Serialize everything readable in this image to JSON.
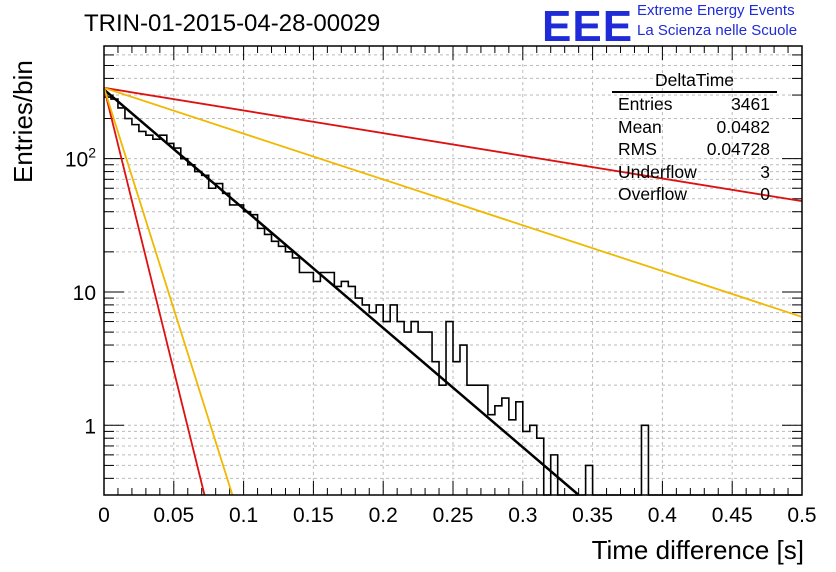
{
  "page_title": "TRIN-01-2015-04-28-00029",
  "logo": {
    "mark": "EEE",
    "line1": "Extreme Energy Events",
    "line2": "La Scienza nelle Scuole",
    "color": "#1f2bd6"
  },
  "stats": {
    "title": "DeltaTime",
    "rows": [
      {
        "label": "Entries",
        "value": "3461"
      },
      {
        "label": "Mean",
        "value": "0.0482"
      },
      {
        "label": "RMS",
        "value": "0.04728"
      },
      {
        "label": "Underflow",
        "value": "3"
      },
      {
        "label": "Overflow",
        "value": "0"
      }
    ]
  },
  "chart_data": {
    "type": "line",
    "xlabel": "Time difference [s]",
    "ylabel": "Entries/bin",
    "xlim": [
      0,
      0.5
    ],
    "yscale": "log",
    "ylim": [
      0.3,
      700
    ],
    "grid": true,
    "x_ticks": [
      "0",
      "0.05",
      "0.1",
      "0.15",
      "0.2",
      "0.25",
      "0.3",
      "0.35",
      "0.4",
      "0.45",
      "0.5"
    ],
    "y_ticks": [
      "1",
      "10",
      "10^2"
    ],
    "histogram": {
      "name": "DeltaTime",
      "bin_width": 0.005,
      "color": "#000000",
      "values": [
        290,
        280,
        240,
        200,
        180,
        160,
        150,
        140,
        150,
        130,
        120,
        100,
        90,
        80,
        75,
        60,
        65,
        55,
        45,
        45,
        40,
        38,
        30,
        27,
        24,
        22,
        20,
        18,
        14,
        14,
        12,
        14,
        14,
        11,
        12,
        11,
        9,
        8,
        7,
        8,
        6,
        8,
        6,
        5,
        6,
        5,
        5,
        3,
        2,
        6,
        3,
        4,
        2,
        2,
        2,
        1.2,
        1.4,
        1.6,
        1.1,
        1.5,
        0.9,
        1.0,
        0.8,
        0,
        0.6,
        0,
        0,
        0,
        0,
        0.5,
        0,
        0.3,
        0,
        0,
        0,
        0,
        0,
        1.0,
        0,
        0,
        0,
        0,
        0,
        0,
        0,
        0,
        0,
        0,
        0,
        0,
        0,
        0,
        0,
        0,
        0,
        0,
        0,
        0,
        0,
        0
      ]
    },
    "series": [
      {
        "color": "#000000",
        "x": [
          0.0,
          0.34
        ],
        "y": [
          330,
          0.3
        ]
      },
      {
        "color": "#dd1111",
        "x": [
          0.0,
          0.5
        ],
        "y": [
          340,
          48
        ]
      },
      {
        "color": "#f0b800",
        "x": [
          0.0,
          0.5
        ],
        "y": [
          340,
          6.5
        ]
      },
      {
        "color": "#dd1111",
        "x": [
          0.0,
          0.072
        ],
        "y": [
          340,
          0.3
        ]
      },
      {
        "color": "#f0b800",
        "x": [
          0.0,
          0.092
        ],
        "y": [
          340,
          0.3
        ]
      }
    ]
  }
}
